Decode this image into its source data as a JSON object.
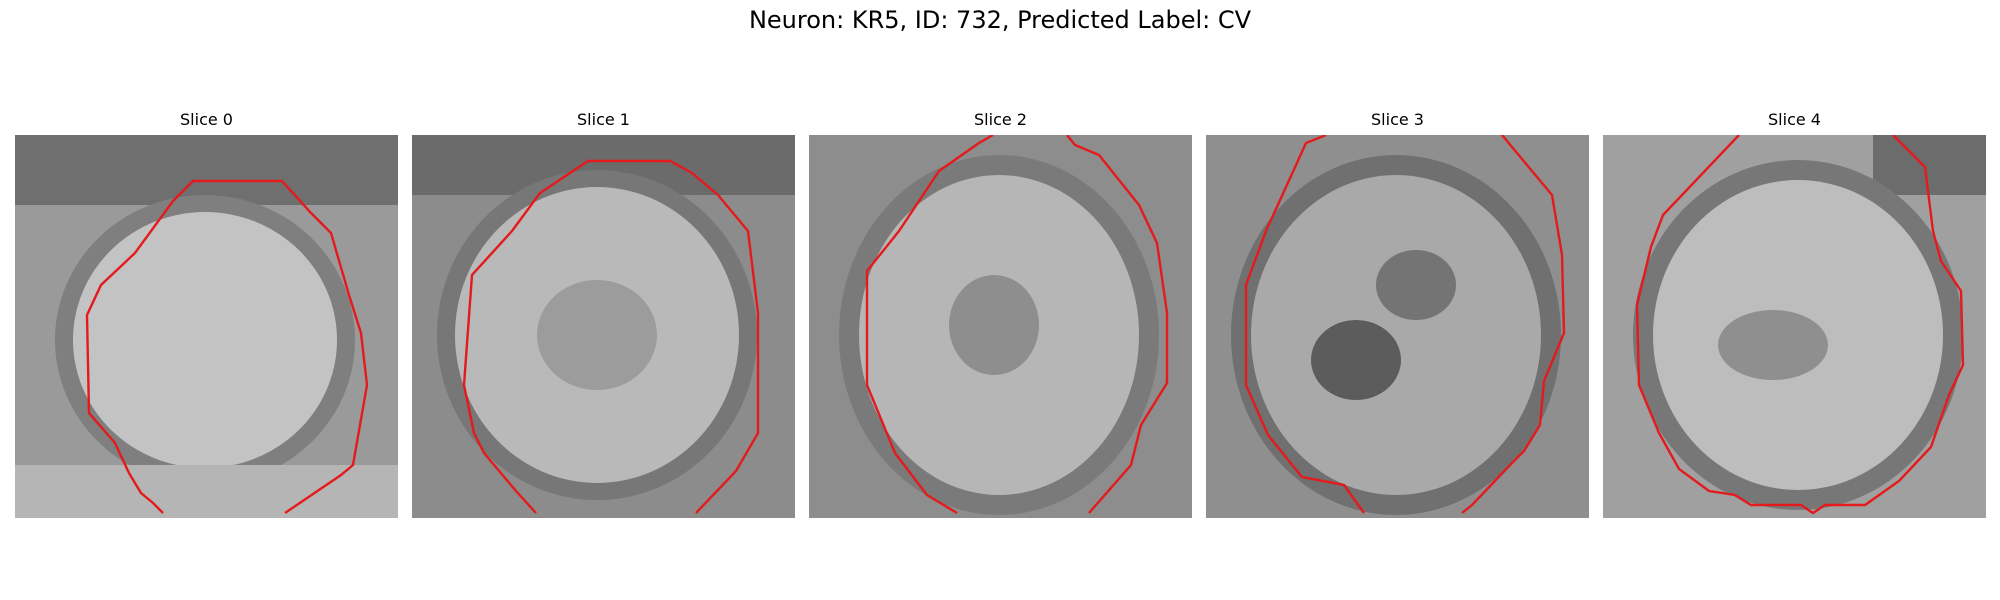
{
  "figure": {
    "title": "Neuron: KR5, ID: 732, Predicted Label: CV"
  },
  "panels": [
    {
      "title": "Slice 0"
    },
    {
      "title": "Slice 1"
    },
    {
      "title": "Slice 2"
    },
    {
      "title": "Slice 3"
    },
    {
      "title": "Slice 4"
    }
  ],
  "colors": {
    "contour": "#e41a1c",
    "background": "#ffffff"
  }
}
